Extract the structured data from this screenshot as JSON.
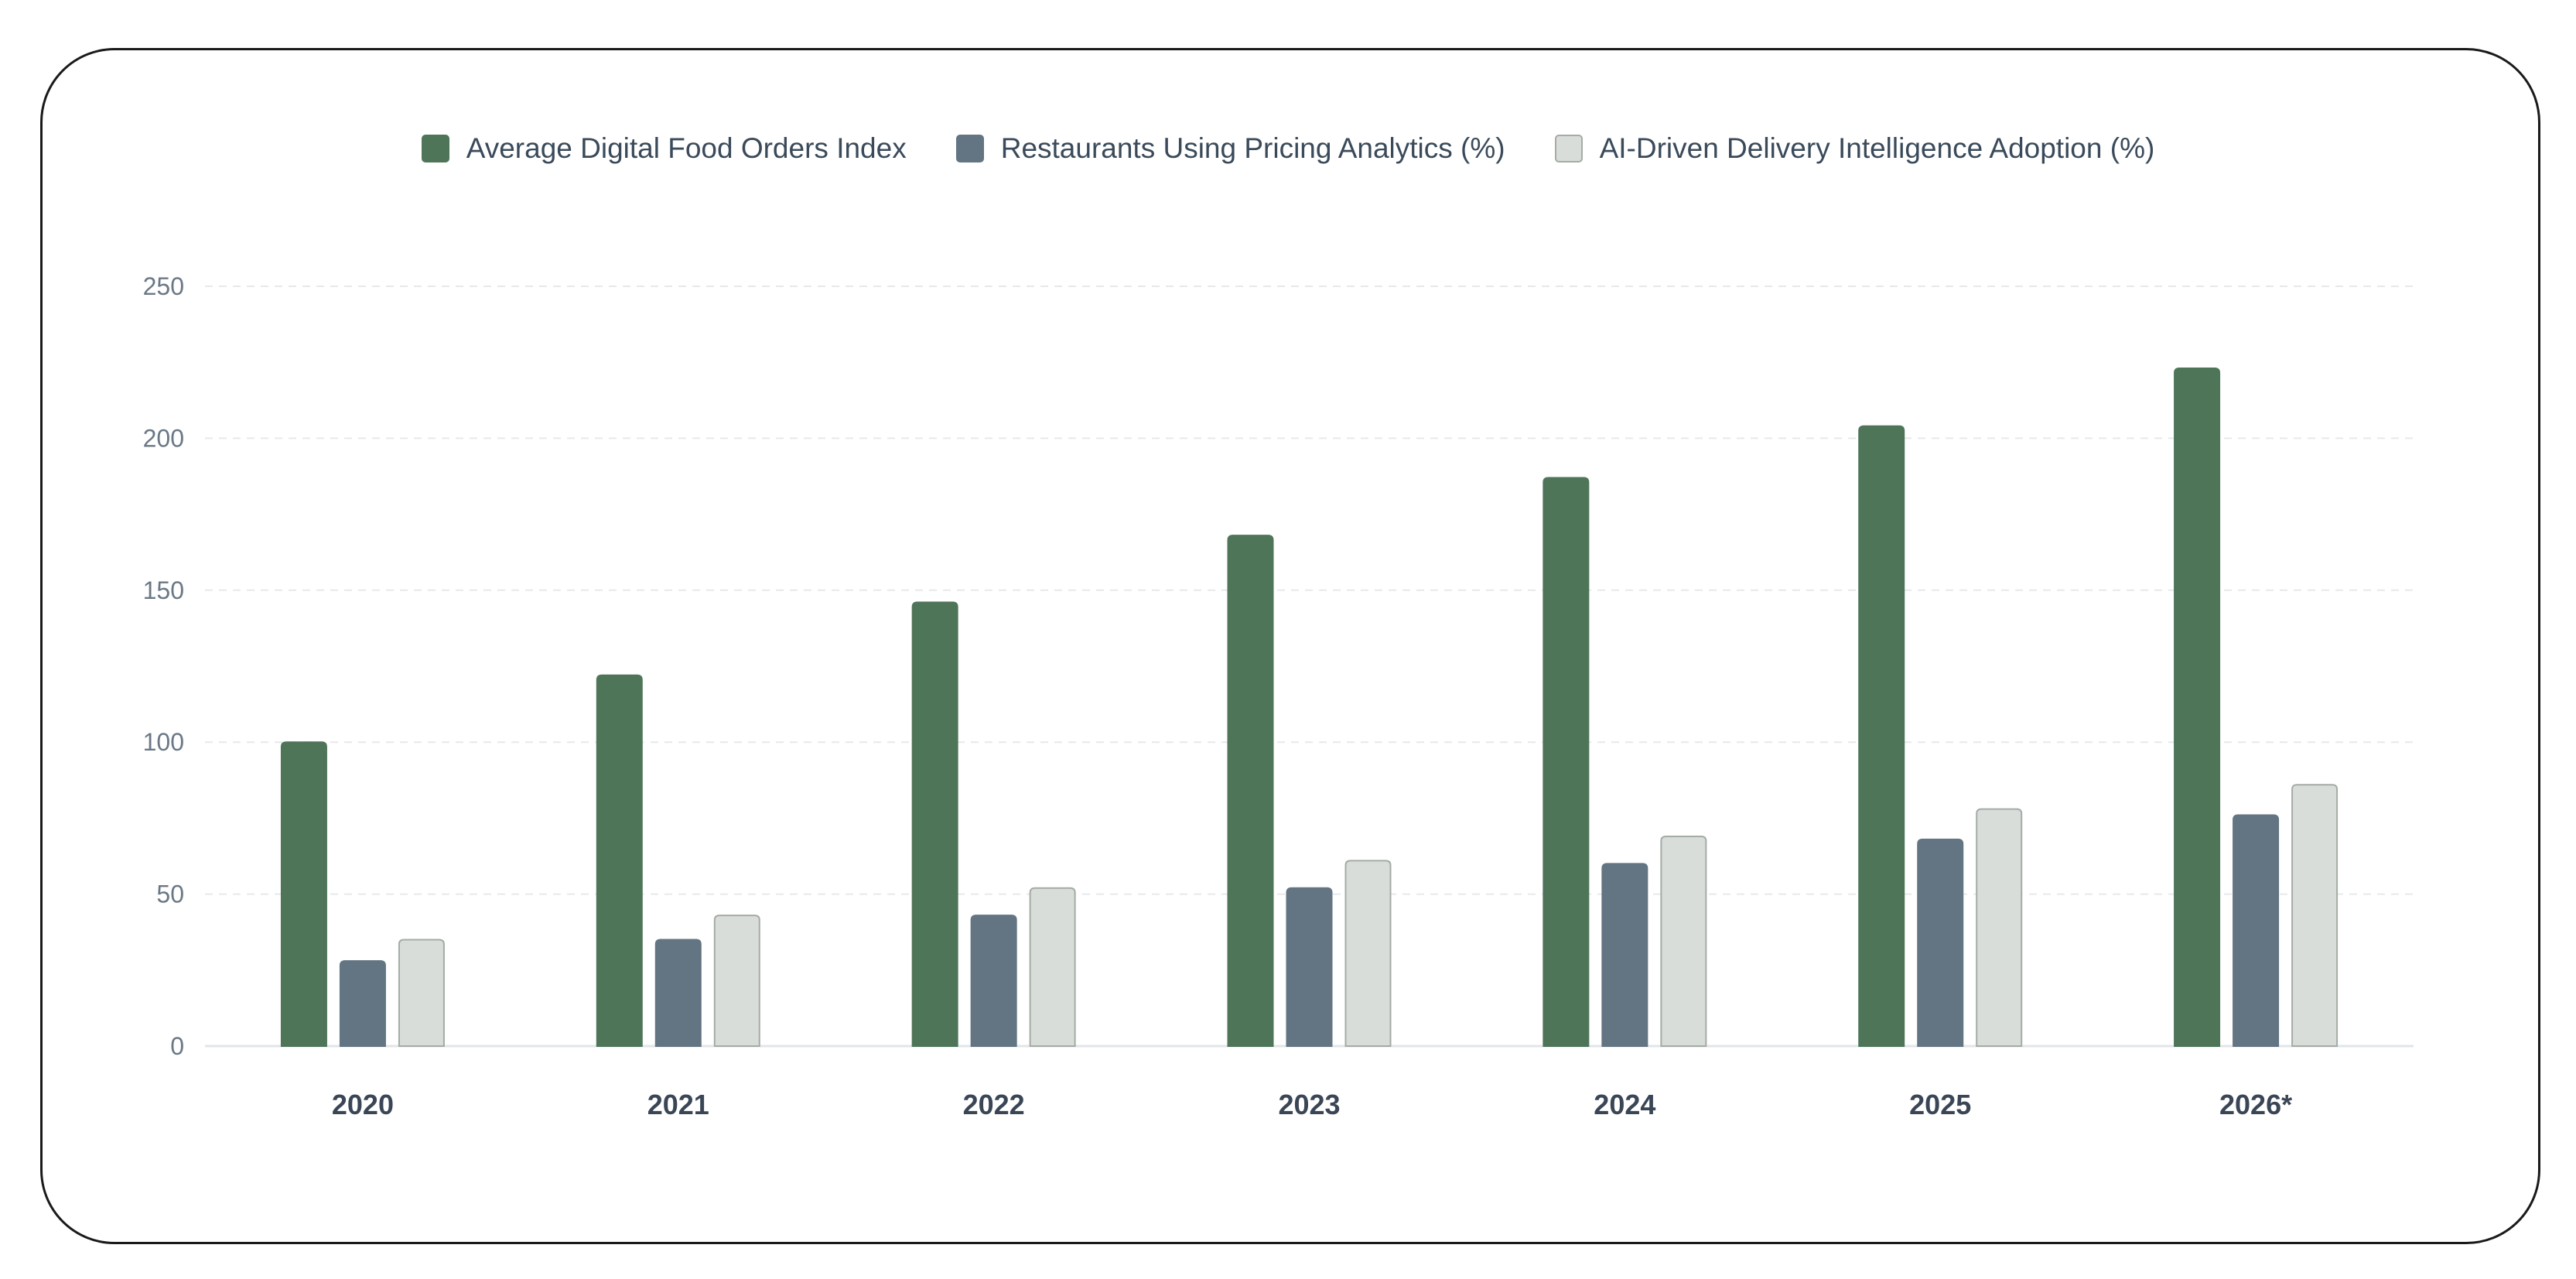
{
  "chart_data": {
    "type": "bar",
    "categories": [
      "2020",
      "2021",
      "2022",
      "2023",
      "2024",
      "2025",
      "2026*"
    ],
    "series": [
      {
        "name": "Average Digital Food Orders Index",
        "values": [
          100,
          122,
          146,
          168,
          187,
          204,
          223
        ],
        "color": "#4f7559",
        "stroke": "#4f7559"
      },
      {
        "name": "Restaurants Using Pricing Analytics (%)",
        "values": [
          28,
          35,
          43,
          52,
          60,
          68,
          76
        ],
        "color": "#637482",
        "stroke": "#637482"
      },
      {
        "name": "AI-Driven Delivery Intelligence Adoption (%)",
        "values": [
          35,
          43,
          52,
          61,
          69,
          78,
          86
        ],
        "color": "#d9ddd9",
        "stroke": "#a4aca6"
      }
    ],
    "y_ticks": [
      "0",
      "50",
      "100",
      "150",
      "200",
      "250"
    ],
    "ylim": [
      0,
      250
    ],
    "grid": true,
    "legend_position": "top"
  }
}
